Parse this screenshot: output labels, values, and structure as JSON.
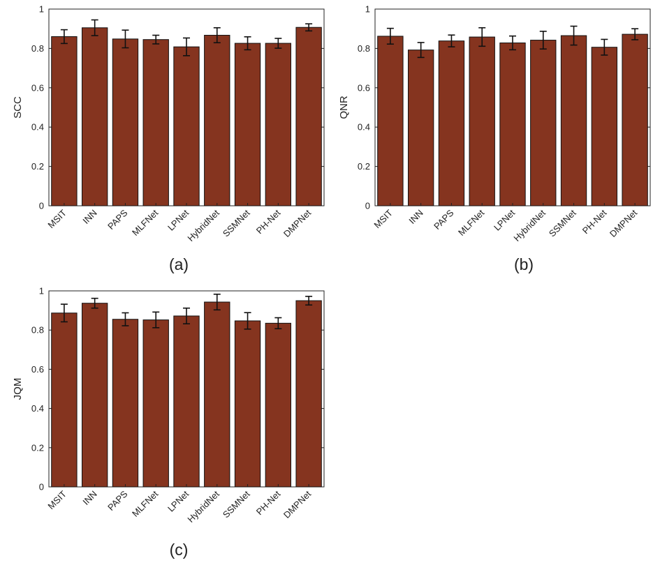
{
  "figure": {
    "panel_labels": [
      "(a)",
      "(b)",
      "(c)"
    ]
  },
  "colors": {
    "bar_fill": "#85341F",
    "bar_stroke": "#111111",
    "axis": "#222222",
    "error_bar": "#111111"
  },
  "chart_data": [
    {
      "type": "bar",
      "panel": "(a)",
      "title": "",
      "xlabel": "",
      "ylabel": "SCC",
      "ylim": [
        0,
        1
      ],
      "yticks": [
        0,
        0.2,
        0.4,
        0.6,
        0.8,
        1
      ],
      "ytick_labels": [
        "0",
        "0.2",
        "0.4",
        "0.6",
        "0.8",
        "1"
      ],
      "grid": false,
      "categories": [
        "MSIT",
        "INN",
        "PAPS",
        "MLFNet",
        "LPNet",
        "HybridNet",
        "SSMNet",
        "PH-Net",
        "DMPNet"
      ],
      "values": [
        0.86,
        0.905,
        0.848,
        0.845,
        0.808,
        0.867,
        0.826,
        0.826,
        0.907
      ],
      "errors": [
        0.035,
        0.04,
        0.045,
        0.022,
        0.045,
        0.038,
        0.033,
        0.025,
        0.018
      ]
    },
    {
      "type": "bar",
      "panel": "(b)",
      "title": "",
      "xlabel": "",
      "ylabel": "QNR",
      "ylim": [
        0,
        1
      ],
      "yticks": [
        0,
        0.2,
        0.4,
        0.6,
        0.8,
        1
      ],
      "ytick_labels": [
        "0",
        "0.2",
        "0.4",
        "0.6",
        "0.8",
        "1"
      ],
      "grid": false,
      "categories": [
        "MSIT",
        "INN",
        "PAPS",
        "MLFNet",
        "LPNet",
        "HybridNet",
        "SSMNet",
        "PH-Net",
        "DMPNet"
      ],
      "values": [
        0.862,
        0.792,
        0.838,
        0.858,
        0.828,
        0.842,
        0.865,
        0.806,
        0.872
      ],
      "errors": [
        0.04,
        0.038,
        0.03,
        0.047,
        0.035,
        0.045,
        0.048,
        0.04,
        0.028
      ]
    },
    {
      "type": "bar",
      "panel": "(c)",
      "title": "",
      "xlabel": "",
      "ylabel": "JQM",
      "ylim": [
        0,
        1
      ],
      "yticks": [
        0,
        0.2,
        0.4,
        0.6,
        0.8,
        1
      ],
      "ytick_labels": [
        "0",
        "0.2",
        "0.4",
        "0.6",
        "0.8",
        "1"
      ],
      "grid": false,
      "categories": [
        "MSIT",
        "INN",
        "PAPS",
        "MLFNet",
        "LPNet",
        "HybridNet",
        "SSMNet",
        "PH-Net",
        "DMPNet"
      ],
      "values": [
        0.887,
        0.937,
        0.855,
        0.852,
        0.872,
        0.943,
        0.847,
        0.835,
        0.95
      ],
      "errors": [
        0.045,
        0.025,
        0.033,
        0.04,
        0.04,
        0.04,
        0.042,
        0.028,
        0.022
      ]
    }
  ]
}
